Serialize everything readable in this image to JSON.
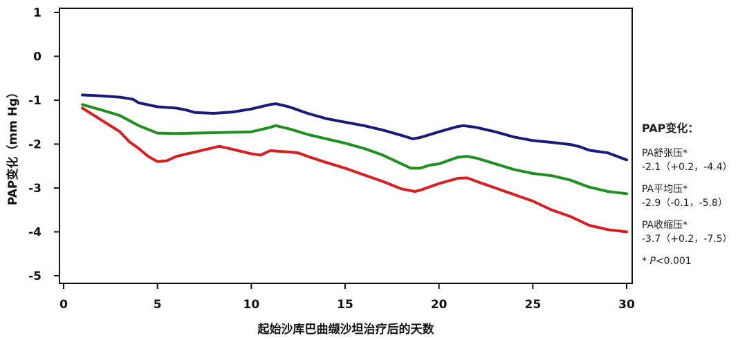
{
  "chart_data": {
    "type": "line",
    "xlabel": "起始沙库巴曲缬沙坦治疗后的天数",
    "ylabel": "PAP变化（mm Hg）",
    "xlim": [
      0,
      30
    ],
    "ylim": [
      -5,
      1
    ],
    "xticks": [
      "0",
      "5",
      "10",
      "15",
      "20",
      "25",
      "30"
    ],
    "yticks": [
      "1",
      "0",
      "-1",
      "-2",
      "-3",
      "-4",
      "-5"
    ],
    "grid": false,
    "legend_position": "right",
    "series": [
      {
        "name": "PA舒张压*",
        "color": "#1a1a7a",
        "x": [
          1,
          2,
          3,
          3.7,
          4,
          5,
          6,
          6.5,
          7,
          8,
          9,
          10,
          11,
          11.3,
          12,
          13,
          14,
          15,
          16,
          17,
          18,
          18.6,
          19,
          20,
          21,
          21.3,
          22,
          23,
          24,
          25,
          26,
          27,
          27.5,
          28,
          29,
          30
        ],
        "y": [
          -0.88,
          -0.9,
          -0.93,
          -0.98,
          -1.06,
          -1.15,
          -1.18,
          -1.22,
          -1.28,
          -1.3,
          -1.27,
          -1.2,
          -1.1,
          -1.08,
          -1.15,
          -1.3,
          -1.42,
          -1.5,
          -1.58,
          -1.68,
          -1.8,
          -1.88,
          -1.85,
          -1.72,
          -1.6,
          -1.58,
          -1.62,
          -1.72,
          -1.84,
          -1.92,
          -1.96,
          -2.01,
          -2.06,
          -2.14,
          -2.2,
          -2.36
        ]
      },
      {
        "name": "PA平均压*",
        "color": "#1f8f1f",
        "x": [
          1,
          2,
          3,
          4,
          5,
          6,
          7,
          8,
          9,
          10,
          11,
          11.3,
          12,
          13,
          14,
          15,
          16,
          17,
          18,
          18.5,
          19,
          19.5,
          20,
          21,
          21.5,
          22,
          23,
          24,
          25,
          26,
          27,
          28,
          29,
          30
        ],
        "y": [
          -1.1,
          -1.22,
          -1.35,
          -1.58,
          -1.75,
          -1.76,
          -1.75,
          -1.74,
          -1.73,
          -1.72,
          -1.62,
          -1.58,
          -1.65,
          -1.78,
          -1.88,
          -1.98,
          -2.1,
          -2.25,
          -2.45,
          -2.55,
          -2.55,
          -2.48,
          -2.45,
          -2.3,
          -2.28,
          -2.32,
          -2.45,
          -2.58,
          -2.67,
          -2.72,
          -2.82,
          -2.98,
          -3.08,
          -3.13
        ]
      },
      {
        "name": "PA收缩压*",
        "color": "#d62020",
        "x": [
          1,
          2,
          3,
          3.5,
          4,
          4.5,
          5,
          5.5,
          6,
          7,
          8,
          8.3,
          9,
          10,
          10.5,
          11,
          12,
          12.5,
          13,
          14,
          15,
          16,
          17,
          18,
          18.7,
          19,
          20,
          21,
          21.5,
          22,
          23,
          24,
          25,
          26,
          27,
          27.5,
          28,
          29,
          30
        ],
        "y": [
          -1.18,
          -1.45,
          -1.72,
          -1.95,
          -2.1,
          -2.28,
          -2.4,
          -2.38,
          -2.28,
          -2.18,
          -2.08,
          -2.05,
          -2.12,
          -2.22,
          -2.25,
          -2.15,
          -2.18,
          -2.2,
          -2.28,
          -2.42,
          -2.55,
          -2.7,
          -2.85,
          -3.02,
          -3.08,
          -3.05,
          -2.9,
          -2.78,
          -2.77,
          -2.85,
          -3.0,
          -3.15,
          -3.3,
          -3.5,
          -3.65,
          -3.75,
          -3.85,
          -3.95,
          -4.0
        ]
      }
    ]
  },
  "legend": {
    "title": "PAP变化：",
    "entries": [
      {
        "label": "PA舒张压*",
        "stat": "-2.1（+0.2，-4.4）"
      },
      {
        "label": "PA平均压*",
        "stat": "-2.9（-0.1，-5.8）"
      },
      {
        "label": "PA收缩压*",
        "stat": "-3.7（+0.2，-7.5）"
      }
    ],
    "footnote_prefix": "* ",
    "footnote_p": "P",
    "footnote_value": "<0.001"
  }
}
